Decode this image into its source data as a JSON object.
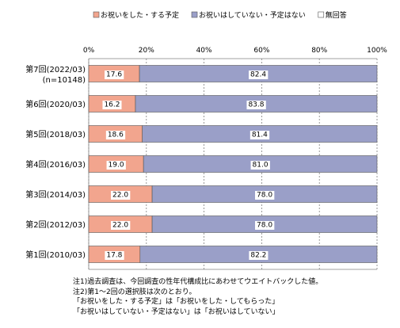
{
  "chart_data": {
    "type": "bar",
    "orientation": "horizontal",
    "stacked": "percent",
    "legend_position": "top",
    "grid": true,
    "xlim": [
      0,
      100
    ],
    "x_ticks": [
      "0%",
      "20%",
      "40%",
      "60%",
      "80%",
      "100%"
    ],
    "categories": [
      [
        "第7回(2022/03)",
        "(n=10148)"
      ],
      [
        "第6回(2020/03)"
      ],
      [
        "第5回(2018/03)"
      ],
      [
        "第4回(2016/03)"
      ],
      [
        "第3回(2014/03)"
      ],
      [
        "第2回(2012/03)"
      ],
      [
        "第1回(2010/03)"
      ]
    ],
    "series": [
      {
        "name": "お祝いをした・する予定",
        "color": "#f2a58e",
        "values": [
          17.6,
          16.2,
          18.6,
          19.0,
          22.0,
          22.0,
          17.8
        ],
        "labels": [
          "17.6",
          "16.2",
          "18.6",
          "19.0",
          "22.0",
          "22.0",
          "17.8"
        ]
      },
      {
        "name": "お祝いはしていない・予定はない",
        "color": "#9a9fc8",
        "values": [
          82.4,
          83.8,
          81.4,
          81.0,
          78.0,
          78.0,
          82.2
        ],
        "labels": [
          "82.4",
          "83.8",
          "81.4",
          "81.0",
          "78.0",
          "78.0",
          "82.2"
        ]
      },
      {
        "name": "無回答",
        "color": "#ffffff",
        "values": [
          0,
          0,
          0,
          0,
          0,
          0,
          0
        ],
        "labels": [
          "",
          "",
          "",
          "",
          "",
          "",
          ""
        ]
      }
    ]
  },
  "notes": [
    "注1)過去調査は、今回調査の性年代構成比にあわせてウエイトバックした値。",
    "注2)第1～2回の選択肢は次のとおり。",
    "「お祝いをした・する予定」は「お祝いをした・してもらった」",
    "「お祝いはしていない・予定はない」は「お祝いはしていない」"
  ]
}
